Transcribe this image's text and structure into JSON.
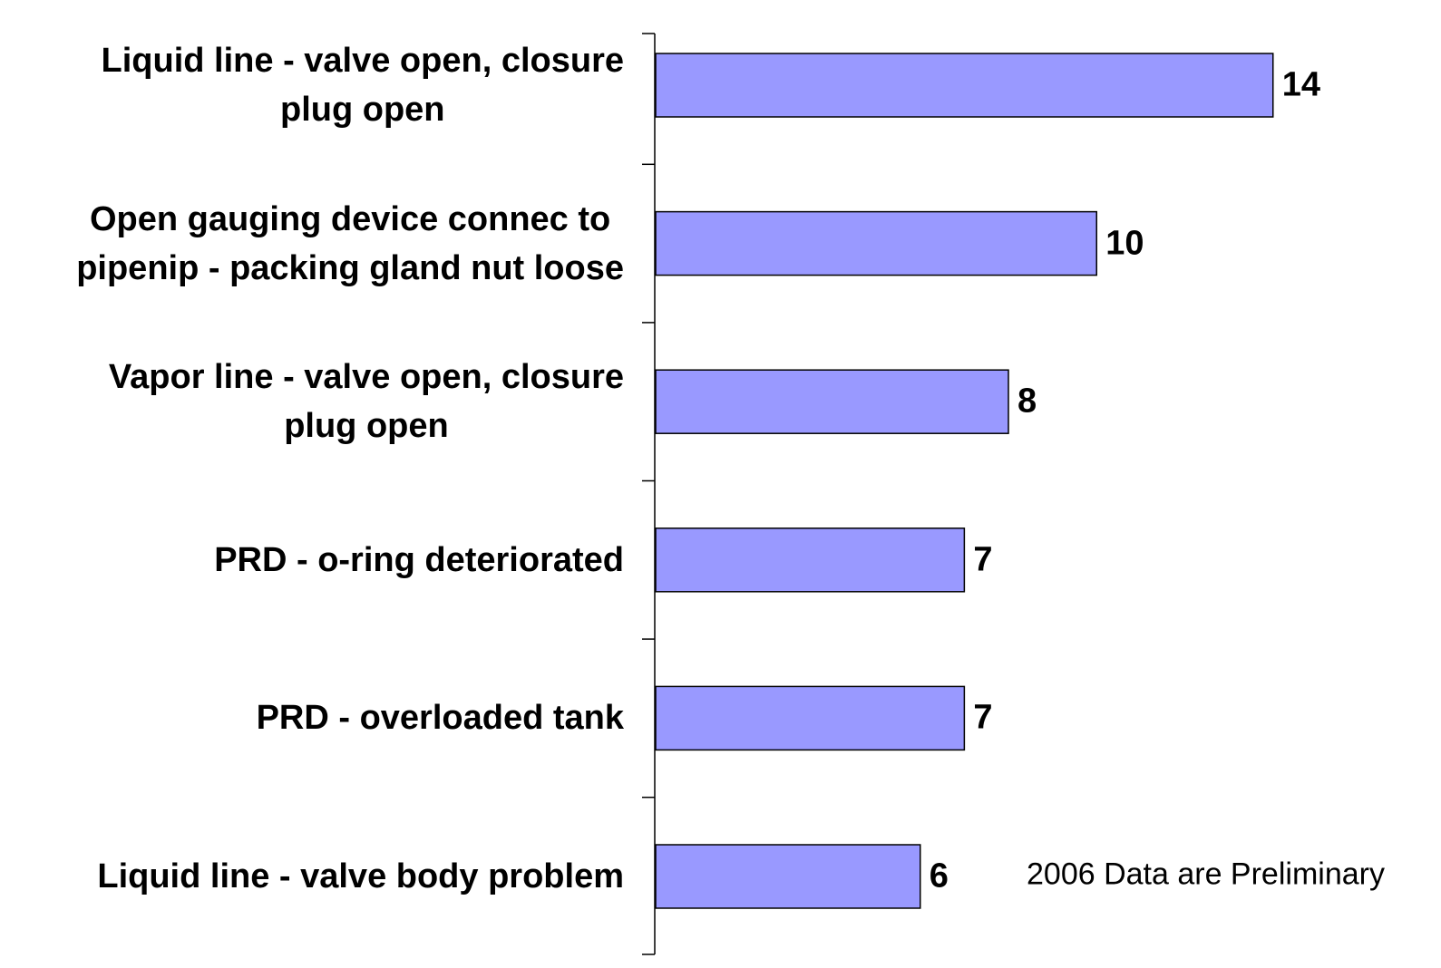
{
  "chart_data": {
    "type": "barh",
    "categories": [
      "Liquid line - valve open, closure\nplug open",
      "Open gauging device connec to\npipenip - packing gland nut loose",
      "Vapor line - valve open, closure\nplug open",
      "PRD - o-ring deteriorated",
      "PRD - overloaded tank",
      "Liquid line - valve body problem"
    ],
    "values": [
      14,
      10,
      8,
      7,
      7,
      6
    ],
    "color": "#9999ff",
    "xlim": [
      0,
      16
    ],
    "annotation": "2006 Data are Preliminary"
  }
}
